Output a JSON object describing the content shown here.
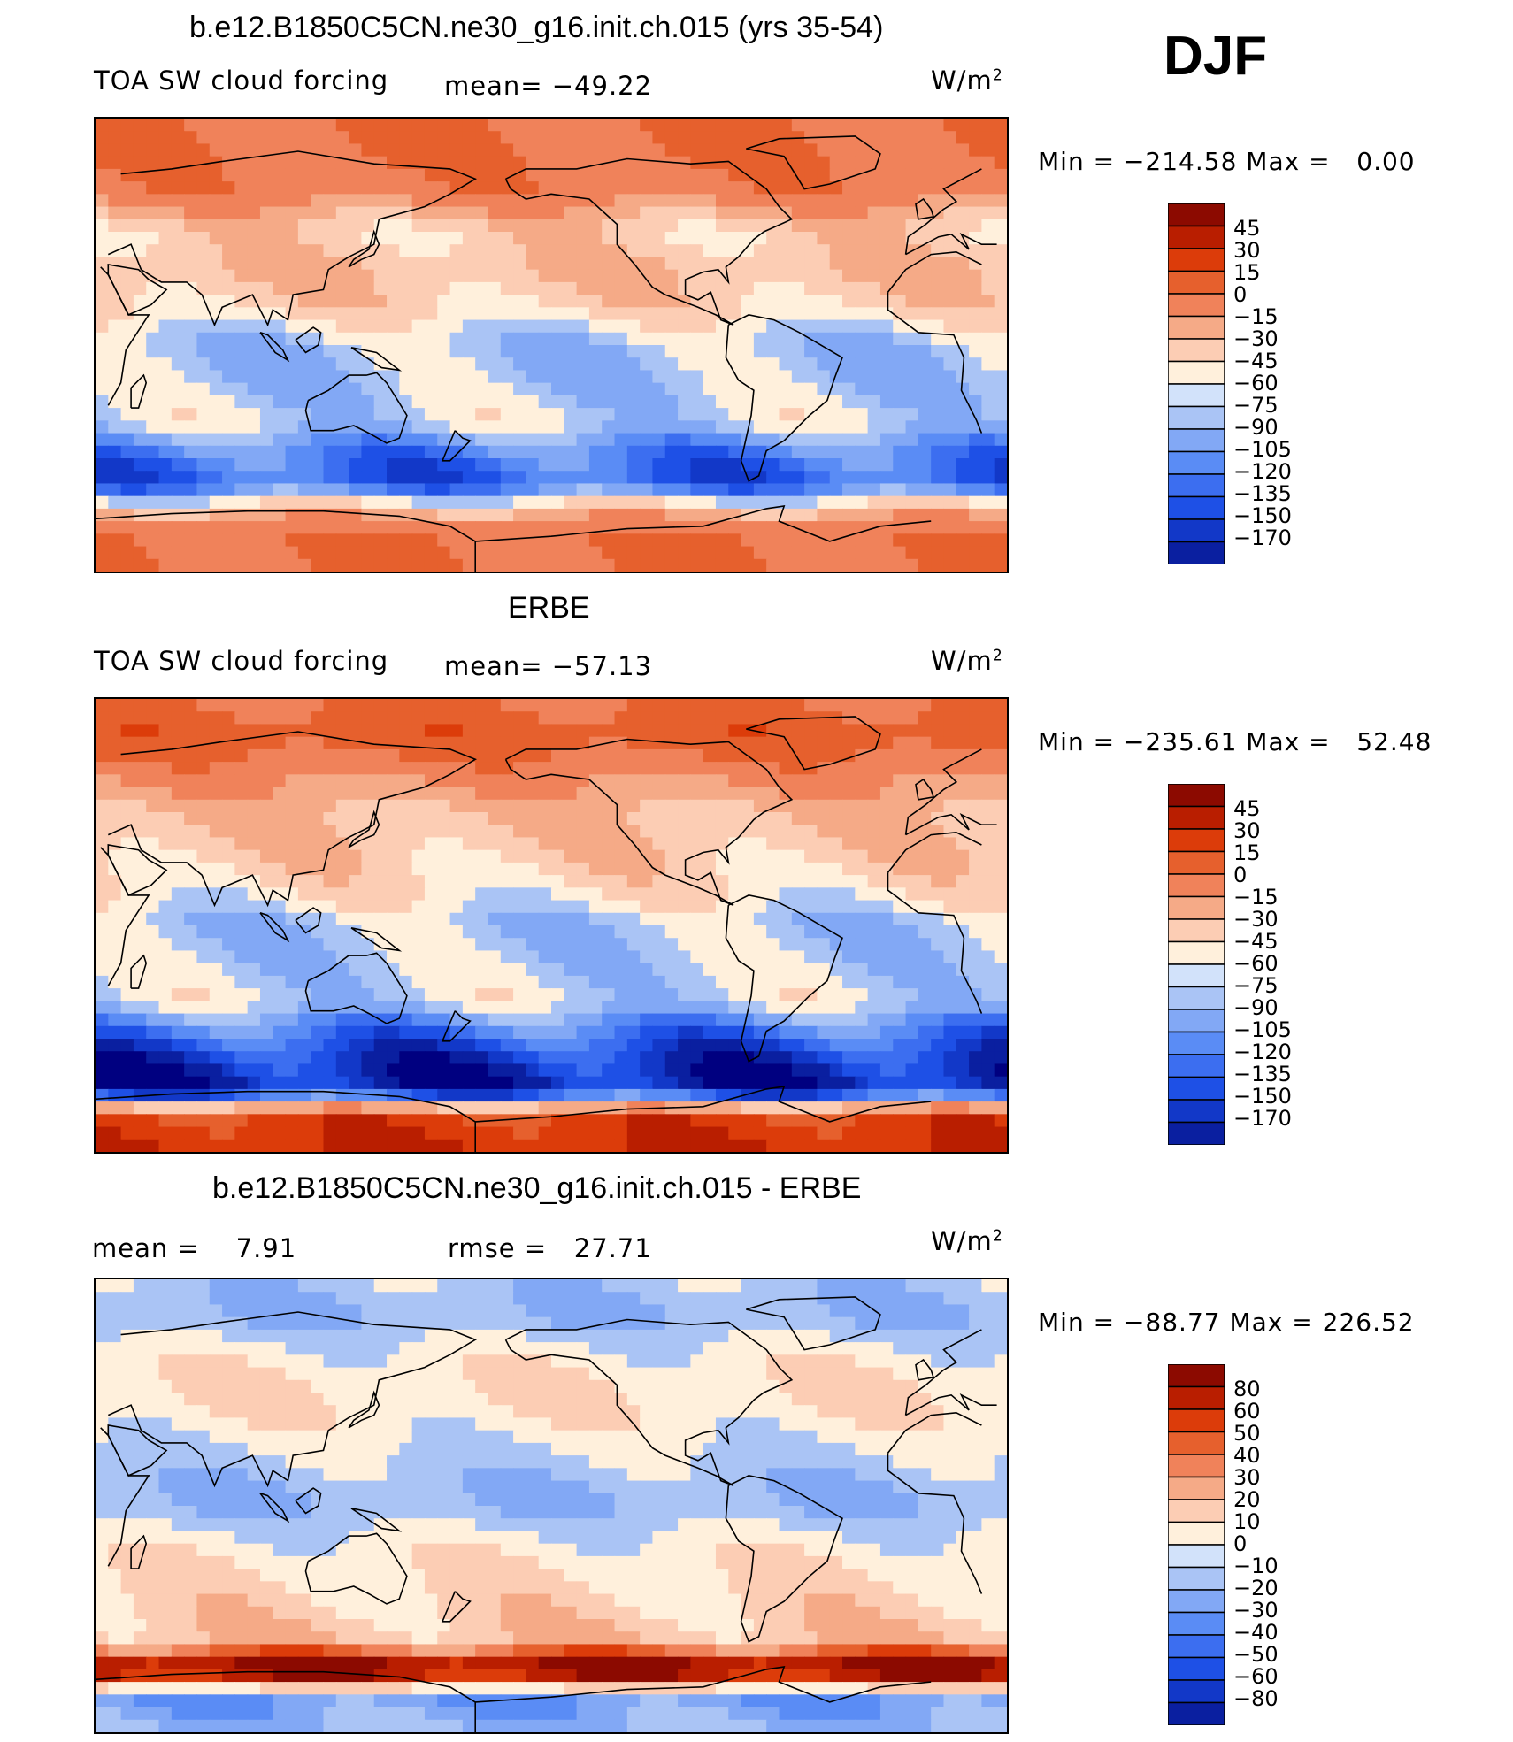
{
  "season": "DJF",
  "panels": [
    {
      "title": "b.e12.B1850C5CN.ne30_g16.init.ch.015 (yrs 35-54)",
      "variable": "TOA SW cloud forcing",
      "stat_text": "mean= −49.22",
      "units": "W/m",
      "units_sup": "2",
      "min_label": "Min",
      "min_value": "−214.58",
      "max_label": "Max",
      "max_value": "0.00",
      "colorbar_labels": [
        "45",
        "30",
        "15",
        "0",
        "−15",
        "−30",
        "−45",
        "−60",
        "−75",
        "−90",
        "−105",
        "−120",
        "−135",
        "−150",
        "−170"
      ]
    },
    {
      "title": "ERBE",
      "variable": "TOA SW cloud forcing",
      "stat_text": "mean= −57.13",
      "units": "W/m",
      "units_sup": "2",
      "min_label": "Min",
      "min_value": "−235.61",
      "max_label": "Max",
      "max_value": "52.48",
      "colorbar_labels": [
        "45",
        "30",
        "15",
        "0",
        "−15",
        "−30",
        "−45",
        "−60",
        "−75",
        "−90",
        "−105",
        "−120",
        "−135",
        "−150",
        "−170"
      ]
    },
    {
      "title": "b.e12.B1850C5CN.ne30_g16.init.ch.015 - ERBE",
      "stat_text": "mean =    7.91",
      "stat2_text": "rmse =   27.71",
      "units": "W/m",
      "units_sup": "2",
      "min_label": "Min",
      "min_value": "−88.77",
      "max_label": "Max",
      "max_value": "226.52",
      "colorbar_labels": [
        "80",
        "60",
        "50",
        "40",
        "30",
        "20",
        "10",
        "0",
        "−10",
        "−20",
        "−30",
        "−40",
        "−50",
        "−60",
        "−80"
      ]
    }
  ],
  "colors": {
    "palette": [
      "#000080",
      "#0a1fa0",
      "#1238c8",
      "#1e50e6",
      "#3c6ef0",
      "#5a8cf5",
      "#82a8f5",
      "#aac4f5",
      "#d2e2fa",
      "#fff0dc",
      "#fccdb4",
      "#f5aa87",
      "#f0825a",
      "#e6602d",
      "#dc3c0a",
      "#b91e00",
      "#8c0a00"
    ],
    "land_outline": "#000000",
    "missing": "#ffffff"
  },
  "chart_data": [
    {
      "type": "heatmap",
      "title": "b.e12.B1850C5CN.ne30_g16.init.ch.015 (yrs 35-54)",
      "subtitle": "TOA SW cloud forcing",
      "units": "W/m2",
      "mean": -49.22,
      "min": -214.58,
      "max": 0.0,
      "contour_levels": [
        -170,
        -150,
        -135,
        -120,
        -105,
        -90,
        -75,
        -60,
        -45,
        -30,
        -15,
        0,
        15,
        30,
        45
      ],
      "zonal_pattern": {
        "lat": [
          90,
          75,
          60,
          45,
          30,
          15,
          0,
          -15,
          -30,
          -45,
          -55,
          -65,
          -75,
          -90
        ],
        "value": [
          0,
          0,
          -5,
          -40,
          -30,
          -40,
          -70,
          -70,
          -60,
          -110,
          -120,
          -30,
          0,
          0
        ]
      }
    },
    {
      "type": "heatmap",
      "title": "ERBE",
      "subtitle": "TOA SW cloud forcing",
      "units": "W/m2",
      "mean": -57.13,
      "min": -235.61,
      "max": 52.48,
      "contour_levels": [
        -170,
        -150,
        -135,
        -120,
        -105,
        -90,
        -75,
        -60,
        -45,
        -30,
        -15,
        0,
        15,
        30,
        45
      ],
      "zonal_pattern": {
        "lat": [
          90,
          75,
          60,
          45,
          30,
          15,
          0,
          -15,
          -30,
          -45,
          -55,
          -65,
          -75,
          -90
        ],
        "value": [
          0,
          10,
          -10,
          -30,
          -35,
          -45,
          -70,
          -65,
          -60,
          -120,
          -150,
          -160,
          20,
          30
        ]
      }
    },
    {
      "type": "heatmap",
      "title": "b.e12.B1850C5CN.ne30_g16.init.ch.015 - ERBE",
      "units": "W/m2",
      "mean": 7.91,
      "rmse": 27.71,
      "min": -88.77,
      "max": 226.52,
      "contour_levels": [
        -80,
        -60,
        -50,
        -40,
        -30,
        -20,
        -10,
        0,
        10,
        20,
        30,
        40,
        50,
        60,
        80
      ],
      "zonal_pattern": {
        "lat": [
          90,
          75,
          60,
          45,
          30,
          15,
          0,
          -15,
          -30,
          -45,
          -55,
          -65,
          -75,
          -90
        ],
        "value": [
          -5,
          -10,
          5,
          10,
          5,
          -5,
          -10,
          5,
          10,
          15,
          20,
          100,
          -20,
          -10
        ]
      }
    }
  ]
}
